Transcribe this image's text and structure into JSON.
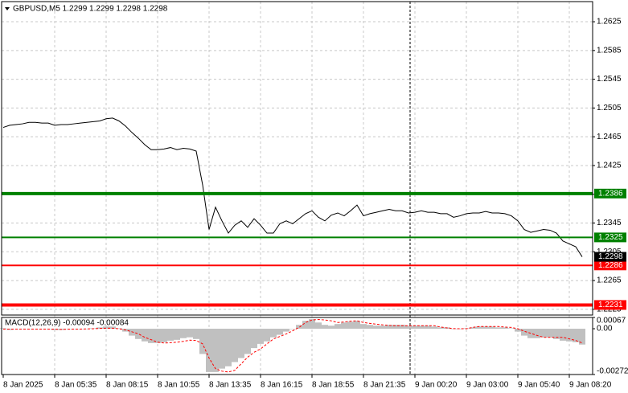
{
  "chart_data": [
    {
      "type": "line",
      "title": "GBPUSD,M5  1.2299 1.2299 1.2298 1.2298",
      "color": "#000000",
      "ylim": [
        1.2217,
        1.2653
      ],
      "yticks": [
        1.2225,
        1.2265,
        1.2305,
        1.2345,
        1.2385,
        1.2425,
        1.2465,
        1.2505,
        1.2545,
        1.2585,
        1.2625
      ],
      "grid": true,
      "categories": [
        "8 Jan 2025",
        null,
        null,
        null,
        null,
        null,
        null,
        null,
        "8 Jan 05:35",
        null,
        null,
        null,
        null,
        null,
        null,
        null,
        "8 Jan 08:15",
        null,
        null,
        null,
        null,
        null,
        null,
        null,
        "8 Jan 10:55",
        null,
        null,
        null,
        null,
        null,
        null,
        null,
        "8 Jan 13:35",
        null,
        null,
        null,
        null,
        null,
        null,
        null,
        "8 Jan 16:15",
        null,
        null,
        null,
        null,
        null,
        null,
        null,
        "8 Jan 18:55",
        null,
        null,
        null,
        null,
        null,
        null,
        null,
        "8 Jan 21:35",
        null,
        null,
        null,
        null,
        null,
        null,
        null,
        "9 Jan 00:20",
        null,
        null,
        null,
        null,
        null,
        null,
        null,
        "9 Jan 03:00",
        null,
        null,
        null,
        null,
        null,
        null,
        null,
        "9 Jan 05:40",
        null,
        null,
        null,
        null,
        null,
        null,
        null,
        "9 Jan 08:20",
        null,
        null
      ],
      "values": [
        1.2478,
        1.2481,
        1.2482,
        1.2483,
        1.2485,
        1.2485,
        1.2484,
        1.2484,
        1.2481,
        1.2482,
        1.2482,
        1.2483,
        1.2484,
        1.2485,
        1.2486,
        1.2487,
        1.249,
        1.2491,
        1.2487,
        1.248,
        1.2471,
        1.2463,
        1.2454,
        1.2447,
        1.2447,
        1.2448,
        1.245,
        1.2447,
        1.2449,
        1.2448,
        1.2445,
        1.2398,
        1.2336,
        1.2367,
        1.2348,
        1.2331,
        1.2342,
        1.2348,
        1.2339,
        1.2351,
        1.2342,
        1.2331,
        1.2331,
        1.2344,
        1.2348,
        1.2344,
        1.2351,
        1.2358,
        1.2362,
        1.2353,
        1.2348,
        1.2356,
        1.2359,
        1.2355,
        1.2362,
        1.237,
        1.2355,
        1.2358,
        1.236,
        1.2362,
        1.2364,
        1.2362,
        1.2362,
        1.2359,
        1.236,
        1.2362,
        1.236,
        1.236,
        1.2358,
        1.2358,
        1.2353,
        1.2355,
        1.2358,
        1.2359,
        1.2359,
        1.2361,
        1.2359,
        1.2359,
        1.2358,
        1.2355,
        1.2348,
        1.2336,
        1.2332,
        1.2334,
        1.2336,
        1.2335,
        1.2331,
        1.232,
        1.2316,
        1.2312,
        1.2298
      ],
      "levels": [
        {
          "value": 1.2386,
          "color": "#008000"
        },
        {
          "value": 1.2325,
          "color": "#008000"
        },
        {
          "value": 1.2286,
          "color": "#ff0000"
        },
        {
          "value": 1.2231,
          "color": "#ff0000"
        }
      ],
      "current_price": 1.2298
    },
    {
      "type": "macd",
      "title": "MACD(12,26,9) -0.00094 -0.00084",
      "ylim": [
        -0.00272,
        0.00067
      ],
      "yticks": [
        0.00067,
        {
          "value": 0,
          "label": "0.00"
        },
        -0.00272
      ],
      "series": [
        {
          "color": "#c0c0c0",
          "values": [
            3e-05,
            -7e-05,
            -2e-05,
            -2e-05,
            -2e-05,
            -2e-05,
            -2e-05,
            -2e-05,
            -7e-05,
            -7e-05,
            -2e-05,
            -2e-05,
            -2e-05,
            -2e-05,
            3e-05,
            8e-05,
            0.00013,
            0.00013,
            3e-05,
            -0.00017,
            -0.00041,
            -0.00061,
            -0.00075,
            -0.00085,
            -0.00085,
            -0.0008,
            -0.00071,
            -0.00066,
            -0.00056,
            -0.00051,
            -0.00061,
            -0.0015,
            -0.00257,
            -0.00257,
            -0.00237,
            -0.00223,
            -0.00198,
            -0.00174,
            -0.0015,
            -0.00115,
            -0.0009,
            -0.00075,
            -0.00051,
            -0.00036,
            -0.00017,
            -2e-05,
            0.00023,
            0.00047,
            0.00057,
            0.00037,
            0.00023,
            0.00018,
            0.00028,
            0.00037,
            0.00042,
            0.00047,
            0.00028,
            0.00023,
            0.00018,
            0.00018,
            0.00023,
            0.00023,
            0.00023,
            0.00018,
            0.00018,
            0.00018,
            0.00018,
            0.00013,
            8e-05,
            8e-05,
            -2e-05,
            -2e-05,
            3e-05,
            8e-05,
            0.00013,
            0.00013,
            0.00013,
            8e-05,
            8e-05,
            3e-05,
            -0.00017,
            -0.00041,
            -0.00056,
            -0.00056,
            -0.00051,
            -0.00051,
            -0.00061,
            -0.00071,
            -0.00075,
            -0.0008,
            -0.00094
          ]
        },
        {
          "color": "#ff0000",
          "values": [
            -2e-05,
            -2e-05,
            -2e-05,
            -2e-05,
            -2e-05,
            -2e-05,
            -2e-05,
            -2e-05,
            -3e-05,
            -4e-05,
            -3e-05,
            -2e-05,
            -2e-05,
            -1e-05,
            0.0,
            2e-05,
            3e-05,
            3e-05,
            0.0,
            -7e-05,
            -0.00018,
            -0.0003,
            -0.00051,
            -0.00065,
            -0.0008,
            -0.00085,
            -0.00083,
            -0.0008,
            -0.00075,
            -0.00068,
            -0.0007,
            -0.0009,
            -0.00174,
            -0.00237,
            -0.00252,
            -0.00257,
            -0.00247,
            -0.00208,
            -0.00169,
            -0.0014,
            -0.0012,
            -0.0009,
            -0.00061,
            -0.00046,
            -0.00031,
            -0.00012,
            8e-05,
            0.00037,
            0.00052,
            0.00055,
            0.00052,
            0.00047,
            0.00037,
            0.0004,
            0.00045,
            0.00047,
            0.00037,
            0.00032,
            0.00027,
            0.00023,
            0.0002,
            0.00018,
            0.00018,
            0.00018,
            0.00018,
            0.00018,
            0.00018,
            0.00018,
            0.0001,
            5e-05,
            1e-05,
            0.0,
            0.0,
            8e-05,
            0.00013,
            0.00013,
            0.00013,
            0.00013,
            0.0001,
            8e-05,
            0.0,
            -0.00015,
            -0.00027,
            -0.0004,
            -0.00051,
            -0.00051,
            -0.00051,
            -0.00051,
            -0.0006,
            -0.0007,
            -0.00084
          ]
        }
      ]
    }
  ]
}
